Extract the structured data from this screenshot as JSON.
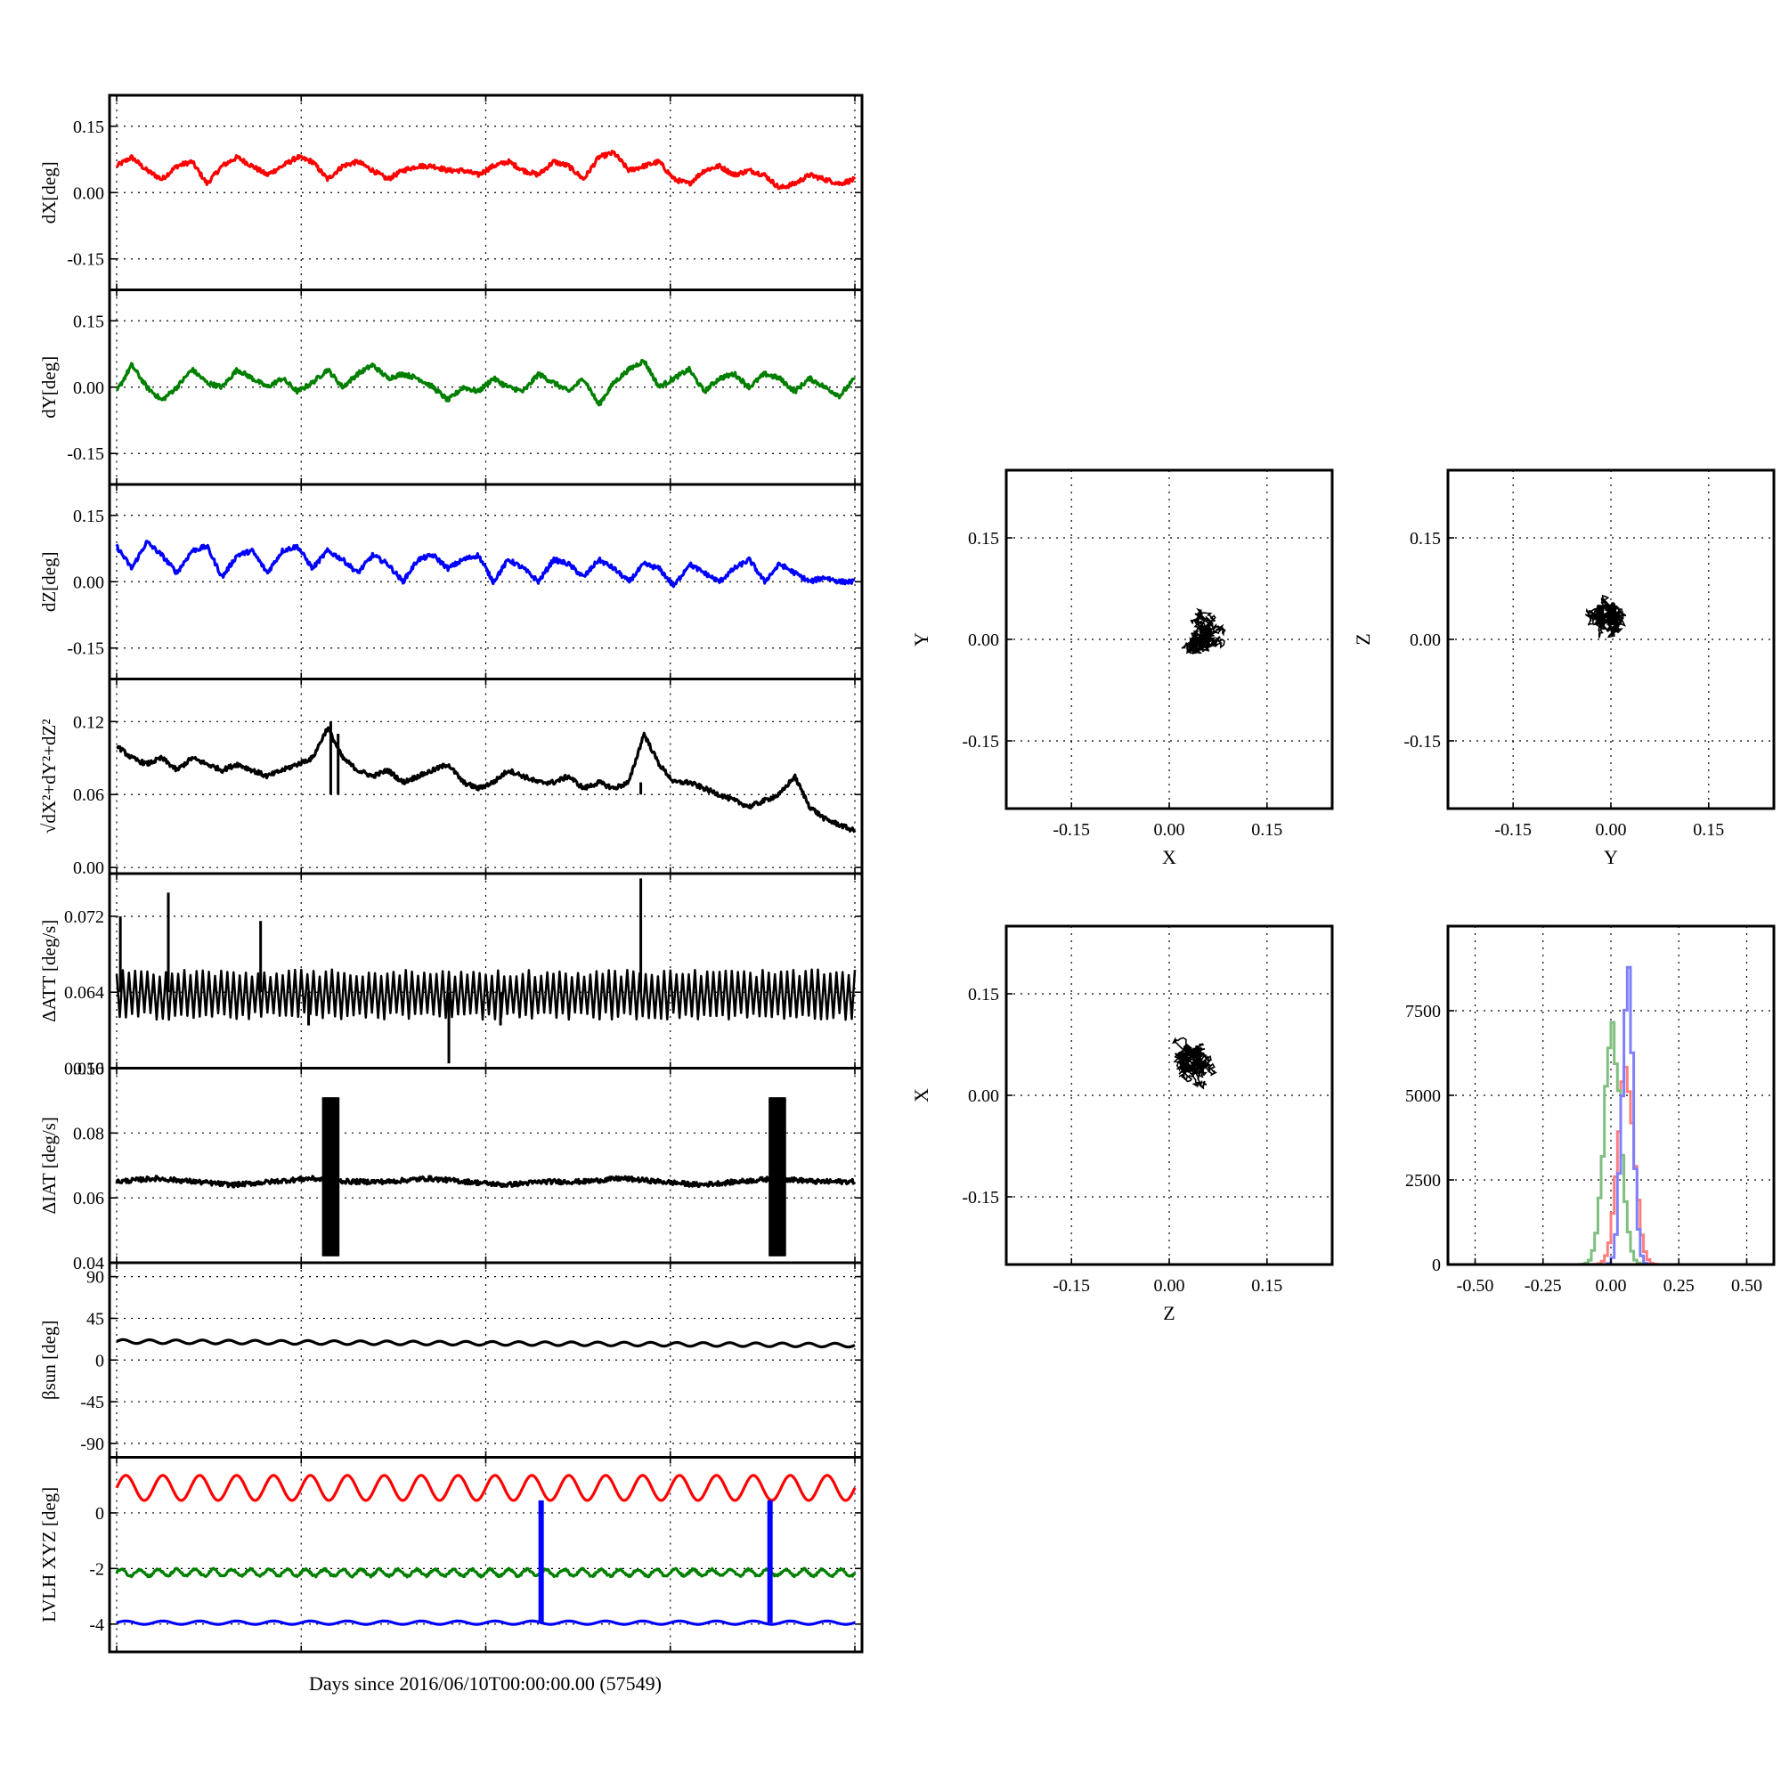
{
  "xlabel": "Days since 2016/06/10T00:00:00.00 (57549)",
  "chart_data": [
    {
      "type": "line",
      "id": "dx",
      "ylabel": "dX[deg]",
      "ylim": [
        -0.22,
        0.22
      ],
      "yticks": [
        "0.15",
        "0.00",
        "-0.15"
      ],
      "grid": true,
      "series": [
        {
          "color": "#ff0000",
          "level": 0.05,
          "values": [
            0.06,
            0.08,
            0.05,
            0.03,
            0.06,
            0.07,
            0.02,
            0.06,
            0.08,
            0.06,
            0.04,
            0.06,
            0.08,
            0.07,
            0.03,
            0.06,
            0.07,
            0.05,
            0.03,
            0.05,
            0.06,
            0.06,
            0.05,
            0.05,
            0.04,
            0.06,
            0.07,
            0.05,
            0.04,
            0.07,
            0.06,
            0.03,
            0.08,
            0.09,
            0.05,
            0.06,
            0.07,
            0.03,
            0.02,
            0.05,
            0.06,
            0.04,
            0.05,
            0.04,
            0.01,
            0.02,
            0.04,
            0.03,
            0.02,
            0.03
          ]
        }
      ]
    },
    {
      "type": "line",
      "id": "dy",
      "ylabel": "dY[deg]",
      "ylim": [
        -0.22,
        0.22
      ],
      "yticks": [
        "0.15",
        "0.00",
        "-0.15"
      ],
      "grid": true,
      "series": [
        {
          "color": "#007f00",
          "level": 0.0,
          "values": [
            -0.01,
            0.05,
            0.0,
            -0.03,
            0.0,
            0.04,
            0.01,
            0.0,
            0.04,
            0.02,
            0.0,
            0.02,
            -0.01,
            0.01,
            0.04,
            0.0,
            0.03,
            0.05,
            0.02,
            0.03,
            0.02,
            0.0,
            -0.03,
            0.0,
            -0.01,
            0.02,
            0.0,
            -0.01,
            0.03,
            0.01,
            -0.01,
            0.02,
            -0.04,
            0.01,
            0.04,
            0.06,
            0.0,
            0.02,
            0.04,
            -0.01,
            0.02,
            0.03,
            0.0,
            0.03,
            0.02,
            -0.01,
            0.02,
            0.0,
            -0.02,
            0.02
          ]
        }
      ]
    },
    {
      "type": "line",
      "id": "dz",
      "ylabel": "dZ[deg]",
      "ylim": [
        -0.22,
        0.22
      ],
      "yticks": [
        "0.15",
        "0.00",
        "-0.15"
      ],
      "grid": true,
      "series": [
        {
          "color": "#0000ff",
          "level": 0.05,
          "values": [
            0.08,
            0.03,
            0.09,
            0.06,
            0.02,
            0.07,
            0.08,
            0.01,
            0.06,
            0.07,
            0.02,
            0.07,
            0.08,
            0.03,
            0.07,
            0.05,
            0.02,
            0.06,
            0.04,
            0.0,
            0.05,
            0.06,
            0.03,
            0.05,
            0.06,
            0.0,
            0.05,
            0.03,
            0.0,
            0.05,
            0.04,
            0.01,
            0.05,
            0.03,
            0.0,
            0.04,
            0.03,
            -0.01,
            0.04,
            0.02,
            0.0,
            0.03,
            0.05,
            0.0,
            0.04,
            0.02,
            0.0,
            0.01,
            0.0,
            0.0
          ]
        }
      ]
    },
    {
      "type": "line",
      "id": "norm",
      "ylabel": "√dX²+dY²+dZ²",
      "ylim": [
        -0.005,
        0.155
      ],
      "yticks": [
        "0.12",
        "0.06",
        "0.00"
      ],
      "grid": true,
      "series": [
        {
          "color": "#000000",
          "level": 0.06,
          "values": [
            0.1,
            0.09,
            0.085,
            0.09,
            0.08,
            0.09,
            0.085,
            0.08,
            0.085,
            0.08,
            0.075,
            0.08,
            0.085,
            0.09,
            0.115,
            0.09,
            0.08,
            0.075,
            0.08,
            0.07,
            0.075,
            0.08,
            0.085,
            0.07,
            0.065,
            0.07,
            0.08,
            0.075,
            0.07,
            0.07,
            0.075,
            0.065,
            0.07,
            0.065,
            0.07,
            0.11,
            0.085,
            0.07,
            0.07,
            0.065,
            0.06,
            0.055,
            0.05,
            0.055,
            0.06,
            0.075,
            0.05,
            0.04,
            0.035,
            0.03
          ]
        }
      ],
      "spikes": [
        {
          "at": 0.29,
          "value": 0.12
        },
        {
          "at": 0.3,
          "value": 0.11
        },
        {
          "at": 0.71,
          "value": 0.07
        }
      ]
    },
    {
      "type": "line",
      "id": "datt",
      "ylabel": "ΔATT [deg/s]",
      "ylim": [
        0.056,
        0.0765
      ],
      "yticks": [
        "0.072",
        "0.064",
        "0.056"
      ],
      "grid": true,
      "series": [
        {
          "color": "#000000",
          "level": 0.064,
          "band": [
            0.0615,
            0.066
          ],
          "values": [
            0.0645,
            0.064,
            0.0645,
            0.064,
            0.0645,
            0.064,
            0.064,
            0.0645,
            0.0645,
            0.064,
            0.0645,
            0.064,
            0.0645,
            0.0645,
            0.064,
            0.0645,
            0.064,
            0.0645,
            0.0645,
            0.064,
            0.0645,
            0.064,
            0.0645,
            0.0645,
            0.064
          ]
        }
      ],
      "spikes": [
        {
          "at": 0.005,
          "value": 0.072
        },
        {
          "at": 0.07,
          "value": 0.0745
        },
        {
          "at": 0.195,
          "value": 0.0715
        },
        {
          "at": 0.45,
          "value": 0.0565
        },
        {
          "at": 0.71,
          "value": 0.076
        },
        {
          "at": 0.26,
          "value": 0.0605
        },
        {
          "at": 0.52,
          "value": 0.0605
        }
      ]
    },
    {
      "type": "line",
      "id": "diat",
      "ylabel": "ΔIAT [deg/s]",
      "ylim": [
        0.04,
        0.1
      ],
      "yticks": [
        "0.10",
        "0.08",
        "0.06",
        "0.04"
      ],
      "grid": true,
      "series": [
        {
          "color": "#000000",
          "level": 0.065,
          "values": [
            0.065,
            0.066,
            0.065,
            0.064,
            0.065,
            0.066,
            0.065,
            0.065,
            0.066,
            0.065,
            0.064,
            0.065,
            0.065,
            0.066,
            0.065,
            0.064,
            0.065,
            0.066,
            0.065,
            0.065
          ]
        }
      ],
      "bursts": [
        {
          "from": 0.28,
          "to": 0.3,
          "min": 0.042,
          "max": 0.091
        },
        {
          "from": 0.885,
          "to": 0.905,
          "min": 0.042,
          "max": 0.091
        }
      ]
    },
    {
      "type": "line",
      "id": "beta",
      "ylabel": "βsun [deg]",
      "ylim": [
        -105,
        105
      ],
      "yticks": [
        "90",
        "45",
        "0",
        "-45",
        "-90"
      ],
      "grid": true,
      "series": [
        {
          "color": "#000000",
          "level": 20,
          "amplitude": 2,
          "cycles": 28,
          "trend": -4
        }
      ]
    },
    {
      "type": "line",
      "id": "lvlh",
      "ylabel": "LVLH XYZ [deg]",
      "ylim": [
        -5,
        2
      ],
      "yticks": [
        "0",
        "-2",
        "-4"
      ],
      "grid": true,
      "series": [
        {
          "color": "#ff0000",
          "level": 0.9,
          "amplitude": 0.45,
          "cycles": 20
        },
        {
          "color": "#007f00",
          "level": -2.15,
          "amplitude": 0.12,
          "cycles": 40
        },
        {
          "color": "#0000ff",
          "level": -3.95,
          "amplitude": 0.06,
          "cycles": 20
        }
      ],
      "verticals": [
        {
          "at": 0.575,
          "from": 0.45,
          "to": -3.95
        },
        {
          "at": 0.885,
          "from": 0.45,
          "to": -3.95
        }
      ]
    },
    {
      "type": "scatter",
      "id": "xy",
      "xlabel": "X",
      "ylabel": "Y",
      "xlim": [
        -0.25,
        0.25
      ],
      "ylim": [
        -0.25,
        0.25
      ],
      "ticks": [
        "-0.15",
        "0.00",
        "0.15"
      ],
      "grid": true,
      "center": [
        0.05,
        0.01
      ],
      "spread": [
        0.045,
        0.055
      ]
    },
    {
      "type": "scatter",
      "id": "yz",
      "xlabel": "Y",
      "ylabel": "Z",
      "xlim": [
        -0.25,
        0.25
      ],
      "ylim": [
        -0.25,
        0.25
      ],
      "ticks": [
        "-0.15",
        "0.00",
        "0.15"
      ],
      "grid": true,
      "center": [
        0.0,
        0.03
      ],
      "spread": [
        0.06,
        0.05
      ]
    },
    {
      "type": "scatter",
      "id": "zx",
      "xlabel": "Z",
      "ylabel": "X",
      "xlim": [
        -0.25,
        0.25
      ],
      "ylim": [
        -0.25,
        0.25
      ],
      "ticks": [
        "-0.15",
        "0.00",
        "0.15"
      ],
      "grid": true,
      "center": [
        0.04,
        0.05
      ],
      "spread": [
        0.055,
        0.045
      ]
    },
    {
      "type": "bar",
      "id": "hist",
      "xlim": [
        -0.6,
        0.6
      ],
      "ylim": [
        0,
        10000
      ],
      "xticks": [
        "-0.50",
        "-0.25",
        "0.00",
        "0.25",
        "0.50"
      ],
      "yticks": [
        "0",
        "2500",
        "5000",
        "7500"
      ],
      "grid": true,
      "series": [
        {
          "color": "#ff7f7f",
          "center": 0.05,
          "width": 0.03,
          "peak": 6200
        },
        {
          "color": "#7fbf7f",
          "center": 0.0,
          "width": 0.03,
          "peak": 7500
        },
        {
          "color": "#8080ff",
          "center": 0.055,
          "width": 0.02,
          "peak": 9200
        }
      ]
    }
  ]
}
